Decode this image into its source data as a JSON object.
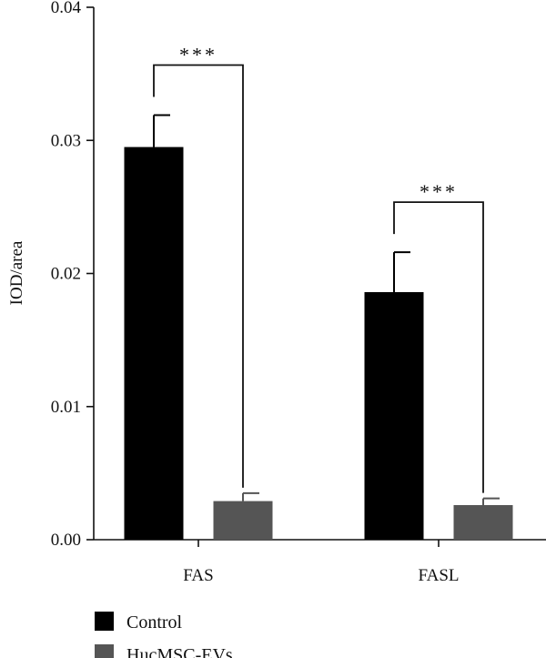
{
  "chart_data": {
    "type": "bar",
    "categories": [
      "FAS",
      "FASL"
    ],
    "series": [
      {
        "name": "Control",
        "color": "#000000",
        "values": [
          0.0295,
          0.0186
        ],
        "errors": [
          0.0024,
          0.003
        ]
      },
      {
        "name": "HucMSC-EVs",
        "color": "#555555",
        "values": [
          0.0029,
          0.0026
        ],
        "errors": [
          0.0006,
          0.0005
        ]
      }
    ],
    "ylabel": "IOD/area",
    "xlabel": "",
    "ylim": [
      0,
      0.04
    ],
    "yticks": [
      "0.00",
      "0.01",
      "0.02",
      "0.03",
      "0.04"
    ],
    "significance": [
      {
        "category": "FAS",
        "label": "***"
      },
      {
        "category": "FASL",
        "label": "***"
      }
    ],
    "grid": false,
    "legend_position": "bottom-left"
  }
}
